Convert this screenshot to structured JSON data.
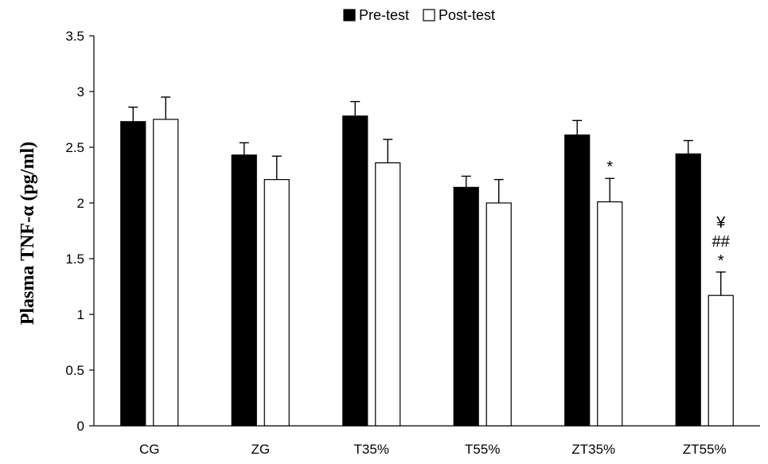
{
  "chart_data": {
    "type": "bar",
    "title": "",
    "xlabel": "",
    "ylabel": "Plasma TNF-α (pg/ml)",
    "ylim": [
      0,
      3.5
    ],
    "yticks": [
      0,
      0.5,
      1,
      1.5,
      2,
      2.5,
      3,
      3.5
    ],
    "ytick_labels": [
      "0",
      "0.5",
      "1",
      "1.5",
      "2",
      "2.5",
      "3",
      "3.5"
    ],
    "categories": [
      "CG",
      "ZG",
      "T35%",
      "T55%",
      "ZT35%",
      "ZT55%"
    ],
    "series": [
      {
        "name": "Pre-test",
        "color": "#000000",
        "values": [
          2.73,
          2.43,
          2.78,
          2.14,
          2.61,
          2.44
        ],
        "errors": [
          0.13,
          0.11,
          0.13,
          0.1,
          0.13,
          0.12
        ]
      },
      {
        "name": "Post-test",
        "color": "#ffffff",
        "values": [
          2.75,
          2.21,
          2.36,
          2.0,
          2.01,
          1.17
        ],
        "errors": [
          0.2,
          0.21,
          0.21,
          0.21,
          0.21,
          0.21
        ]
      }
    ],
    "annotations": [
      {
        "category": "ZT35%",
        "series": "Post-test",
        "lines": [
          "*"
        ]
      },
      {
        "category": "ZT55%",
        "series": "Post-test",
        "lines": [
          "¥",
          "##",
          "*"
        ]
      }
    ],
    "legend": {
      "position": "top"
    },
    "grid": false
  }
}
